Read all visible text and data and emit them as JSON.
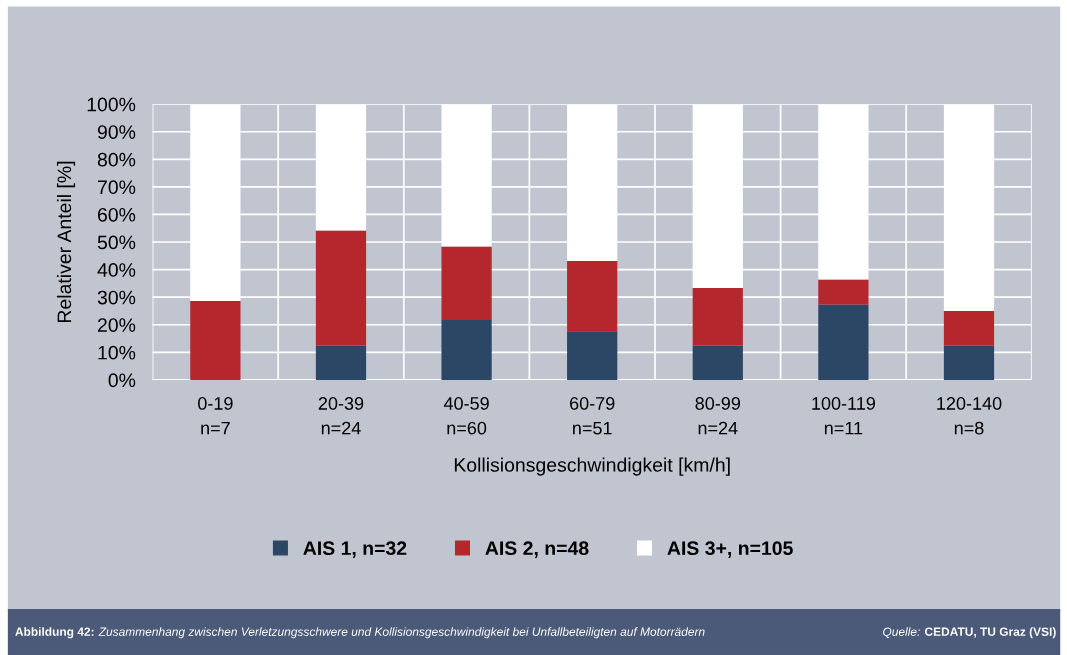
{
  "chart_data": {
    "type": "bar",
    "stacked": true,
    "xlabel": "Kollisionsgeschwindigkeit [km/h]",
    "ylabel": "Relativer Anteil [%]",
    "categories": [
      "0-19\nn=7",
      "20-39\nn=24",
      "40-59\nn=60",
      "60-79\nn=51",
      "80-99\nn=24",
      "100-119\nn=11",
      "120-140\nn=8"
    ],
    "series": [
      {
        "name": "AIS 1, n=32",
        "color": "#2c4666",
        "values": [
          0,
          12.5,
          21.7,
          17.6,
          12.5,
          27.3,
          12.5
        ]
      },
      {
        "name": "AIS 2, n=48",
        "color": "#b5272d",
        "values": [
          28.6,
          41.7,
          26.7,
          25.5,
          20.8,
          9.1,
          12.5
        ]
      },
      {
        "name": "AIS 3+, n=105",
        "color": "#ffffff",
        "values": [
          71.4,
          45.8,
          51.6,
          56.9,
          66.7,
          63.6,
          75.0
        ]
      }
    ],
    "ylim": [
      0,
      100
    ],
    "yticks": [
      {
        "value": 0,
        "label": "0%"
      },
      {
        "value": 10,
        "label": "10%"
      },
      {
        "value": 20,
        "label": "20%"
      },
      {
        "value": 30,
        "label": "30%"
      },
      {
        "value": 40,
        "label": "40%"
      },
      {
        "value": 50,
        "label": "50%"
      },
      {
        "value": 60,
        "label": "60%"
      },
      {
        "value": 70,
        "label": "70%"
      },
      {
        "value": 80,
        "label": "80%"
      },
      {
        "value": 90,
        "label": "90%"
      },
      {
        "value": 100,
        "label": "100%"
      }
    ],
    "grid": true,
    "legend": "bottom",
    "annotations": [
      "Abbildung 42:",
      "Zusammenhang zwischen Verletzungsschwere und Kollisionsgeschwindigkeit bei Unfallbeteiligten auf Motorrädern",
      "Quelle:",
      "CEDATU, TU Graz (VSI)"
    ]
  }
}
